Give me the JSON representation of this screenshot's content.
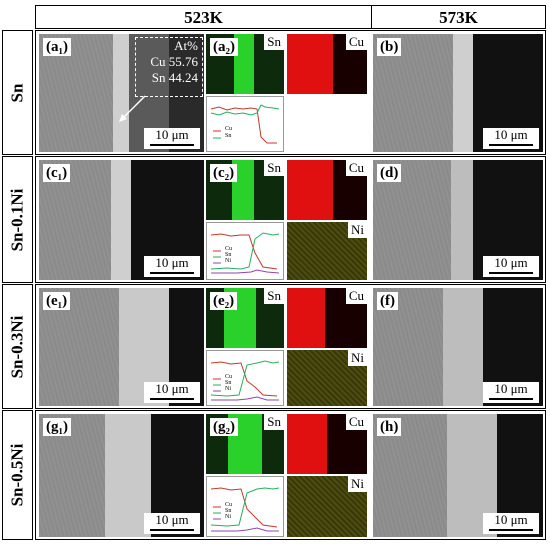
{
  "headers": {
    "left": "523K",
    "right": "573K"
  },
  "rows": [
    {
      "label": "Sn",
      "sem_a": "(a₁)",
      "map": "(a₂)",
      "sem_b": "(b)"
    },
    {
      "label": "Sn-0.1Ni",
      "sem_a": "(c₁)",
      "map": "(c₂)",
      "sem_b": "(d)"
    },
    {
      "label": "Sn-0.3Ni",
      "sem_a": "(e₁)",
      "map": "(e₂)",
      "sem_b": "(f)"
    },
    {
      "label": "Sn-0.5Ni",
      "sem_a": "(g₁)",
      "map": "(g₂)",
      "sem_b": "(h)"
    }
  ],
  "composition": {
    "title": "At%",
    "cu": "Cu 55.76",
    "sn": "Sn 44.24"
  },
  "scale_bar": "10 μm",
  "map_labels": {
    "sn": "Sn",
    "cu": "Cu",
    "ni": "Ni"
  },
  "legend": {
    "cu": "Cu",
    "sn": "Sn",
    "ni": "Ni"
  },
  "colors": {
    "sn_map": "#2bd12b",
    "cu_map": "#e01010",
    "ni_map": "#b4b400",
    "line_cu": "#c0392b",
    "line_sn": "#27ae60",
    "line_ni": "#8e44ad"
  }
}
